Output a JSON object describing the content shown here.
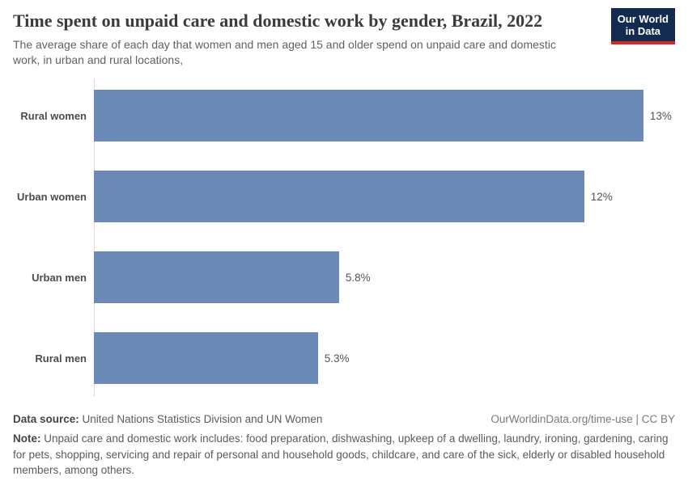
{
  "header": {
    "title": "Time spent on unpaid care and domestic work by gender, Brazil, 2022",
    "subtitle": "The average share of each day that women and men aged 15 and older spend on unpaid care and domestic work, in urban and rural locations,",
    "logo": {
      "line1": "Our World",
      "line2": "in Data",
      "bg_color": "#122b4e",
      "accent_color": "#d12a20"
    }
  },
  "chart_data": {
    "type": "bar",
    "orientation": "horizontal",
    "title": "Time spent on unpaid care and domestic work by gender, Brazil, 2022",
    "categories": [
      "Rural women",
      "Urban women",
      "Urban men",
      "Rural men"
    ],
    "values": [
      13.0,
      11.6,
      5.8,
      5.3
    ],
    "value_labels": [
      "13%",
      "12%",
      "5.8%",
      "5.3%"
    ],
    "unit": "%",
    "xlim": [
      0,
      13.75
    ],
    "grid": false,
    "legend": "none",
    "bar_color": "#6c8ab8",
    "axis_line_color": "#dadada"
  },
  "footer": {
    "source_label": "Data source:",
    "source_text": "United Nations Statistics Division and UN Women",
    "license_text": "OurWorldinData.org/time-use | CC BY",
    "note_label": "Note:",
    "note_text": "Unpaid care and domestic work includes: food preparation, dishwashing, upkeep of a dwelling, laundry, ironing, gardening, caring for pets, shopping, servicing and repair of personal and household goods, childcare, and care of the sick, elderly or disabled household members, among others."
  }
}
